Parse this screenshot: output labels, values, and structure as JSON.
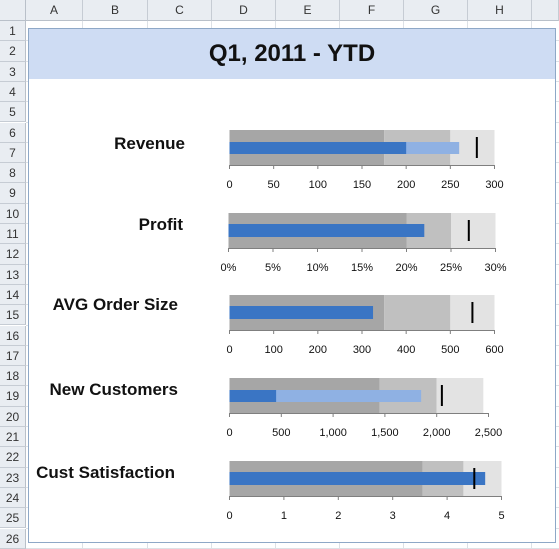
{
  "spreadsheet": {
    "columns": [
      "A",
      "B",
      "C",
      "D",
      "E",
      "F",
      "G",
      "H"
    ],
    "rows": [
      "1",
      "2",
      "3",
      "4",
      "5",
      "6",
      "7",
      "8",
      "9",
      "10",
      "11",
      "12",
      "13",
      "14",
      "15",
      "16",
      "17",
      "18",
      "19",
      "20",
      "21",
      "22",
      "23",
      "24",
      "25",
      "26"
    ]
  },
  "colors": {
    "title_band": "#cedcf3",
    "band_poor": "#a6a6a6",
    "band_ok": "#c0c0c0",
    "band_good": "#e3e3e3",
    "actual_bar": "#3a75c4",
    "forecast_bar": "#8fb1e3",
    "target_marker": "#000000"
  },
  "chart_data": {
    "type": "bullet",
    "title": "Q1, 2011 - YTD",
    "metrics": [
      {
        "label": "Revenue",
        "axis": {
          "min": 0,
          "max": 300,
          "ticks": [
            "0",
            "50",
            "100",
            "150",
            "200",
            "250",
            "300"
          ]
        },
        "bands": [
          175,
          250,
          300
        ],
        "actual": 200,
        "forecast": 260,
        "target": 280
      },
      {
        "label": "Profit",
        "axis": {
          "min": 0,
          "max": 0.3,
          "ticks": [
            "0%",
            "5%",
            "10%",
            "15%",
            "20%",
            "25%",
            "30%"
          ]
        },
        "bands": [
          0.2,
          0.25,
          0.3
        ],
        "actual": 0.22,
        "forecast": null,
        "target": 0.27
      },
      {
        "label": "AVG Order Size",
        "axis": {
          "min": 0,
          "max": 600,
          "ticks": [
            "0",
            "100",
            "200",
            "300",
            "400",
            "500",
            "600"
          ]
        },
        "bands": [
          350,
          500,
          600
        ],
        "actual": 325,
        "forecast": null,
        "target": 550
      },
      {
        "label": "New Customers",
        "axis": {
          "min": 0,
          "max": 2500,
          "ticks": [
            "0",
            "500",
            "1,000",
            "1,500",
            "2,000",
            "2,500"
          ]
        },
        "bands": [
          1450,
          2000,
          2450
        ],
        "actual": 450,
        "forecast": 1850,
        "target": 2050
      },
      {
        "label": "Cust Satisfaction",
        "axis": {
          "min": 0,
          "max": 5,
          "ticks": [
            "0",
            "1",
            "2",
            "3",
            "4",
            "5"
          ]
        },
        "bands": [
          3.55,
          4.3,
          5
        ],
        "actual": 4.7,
        "forecast": null,
        "target": 4.5
      }
    ]
  }
}
